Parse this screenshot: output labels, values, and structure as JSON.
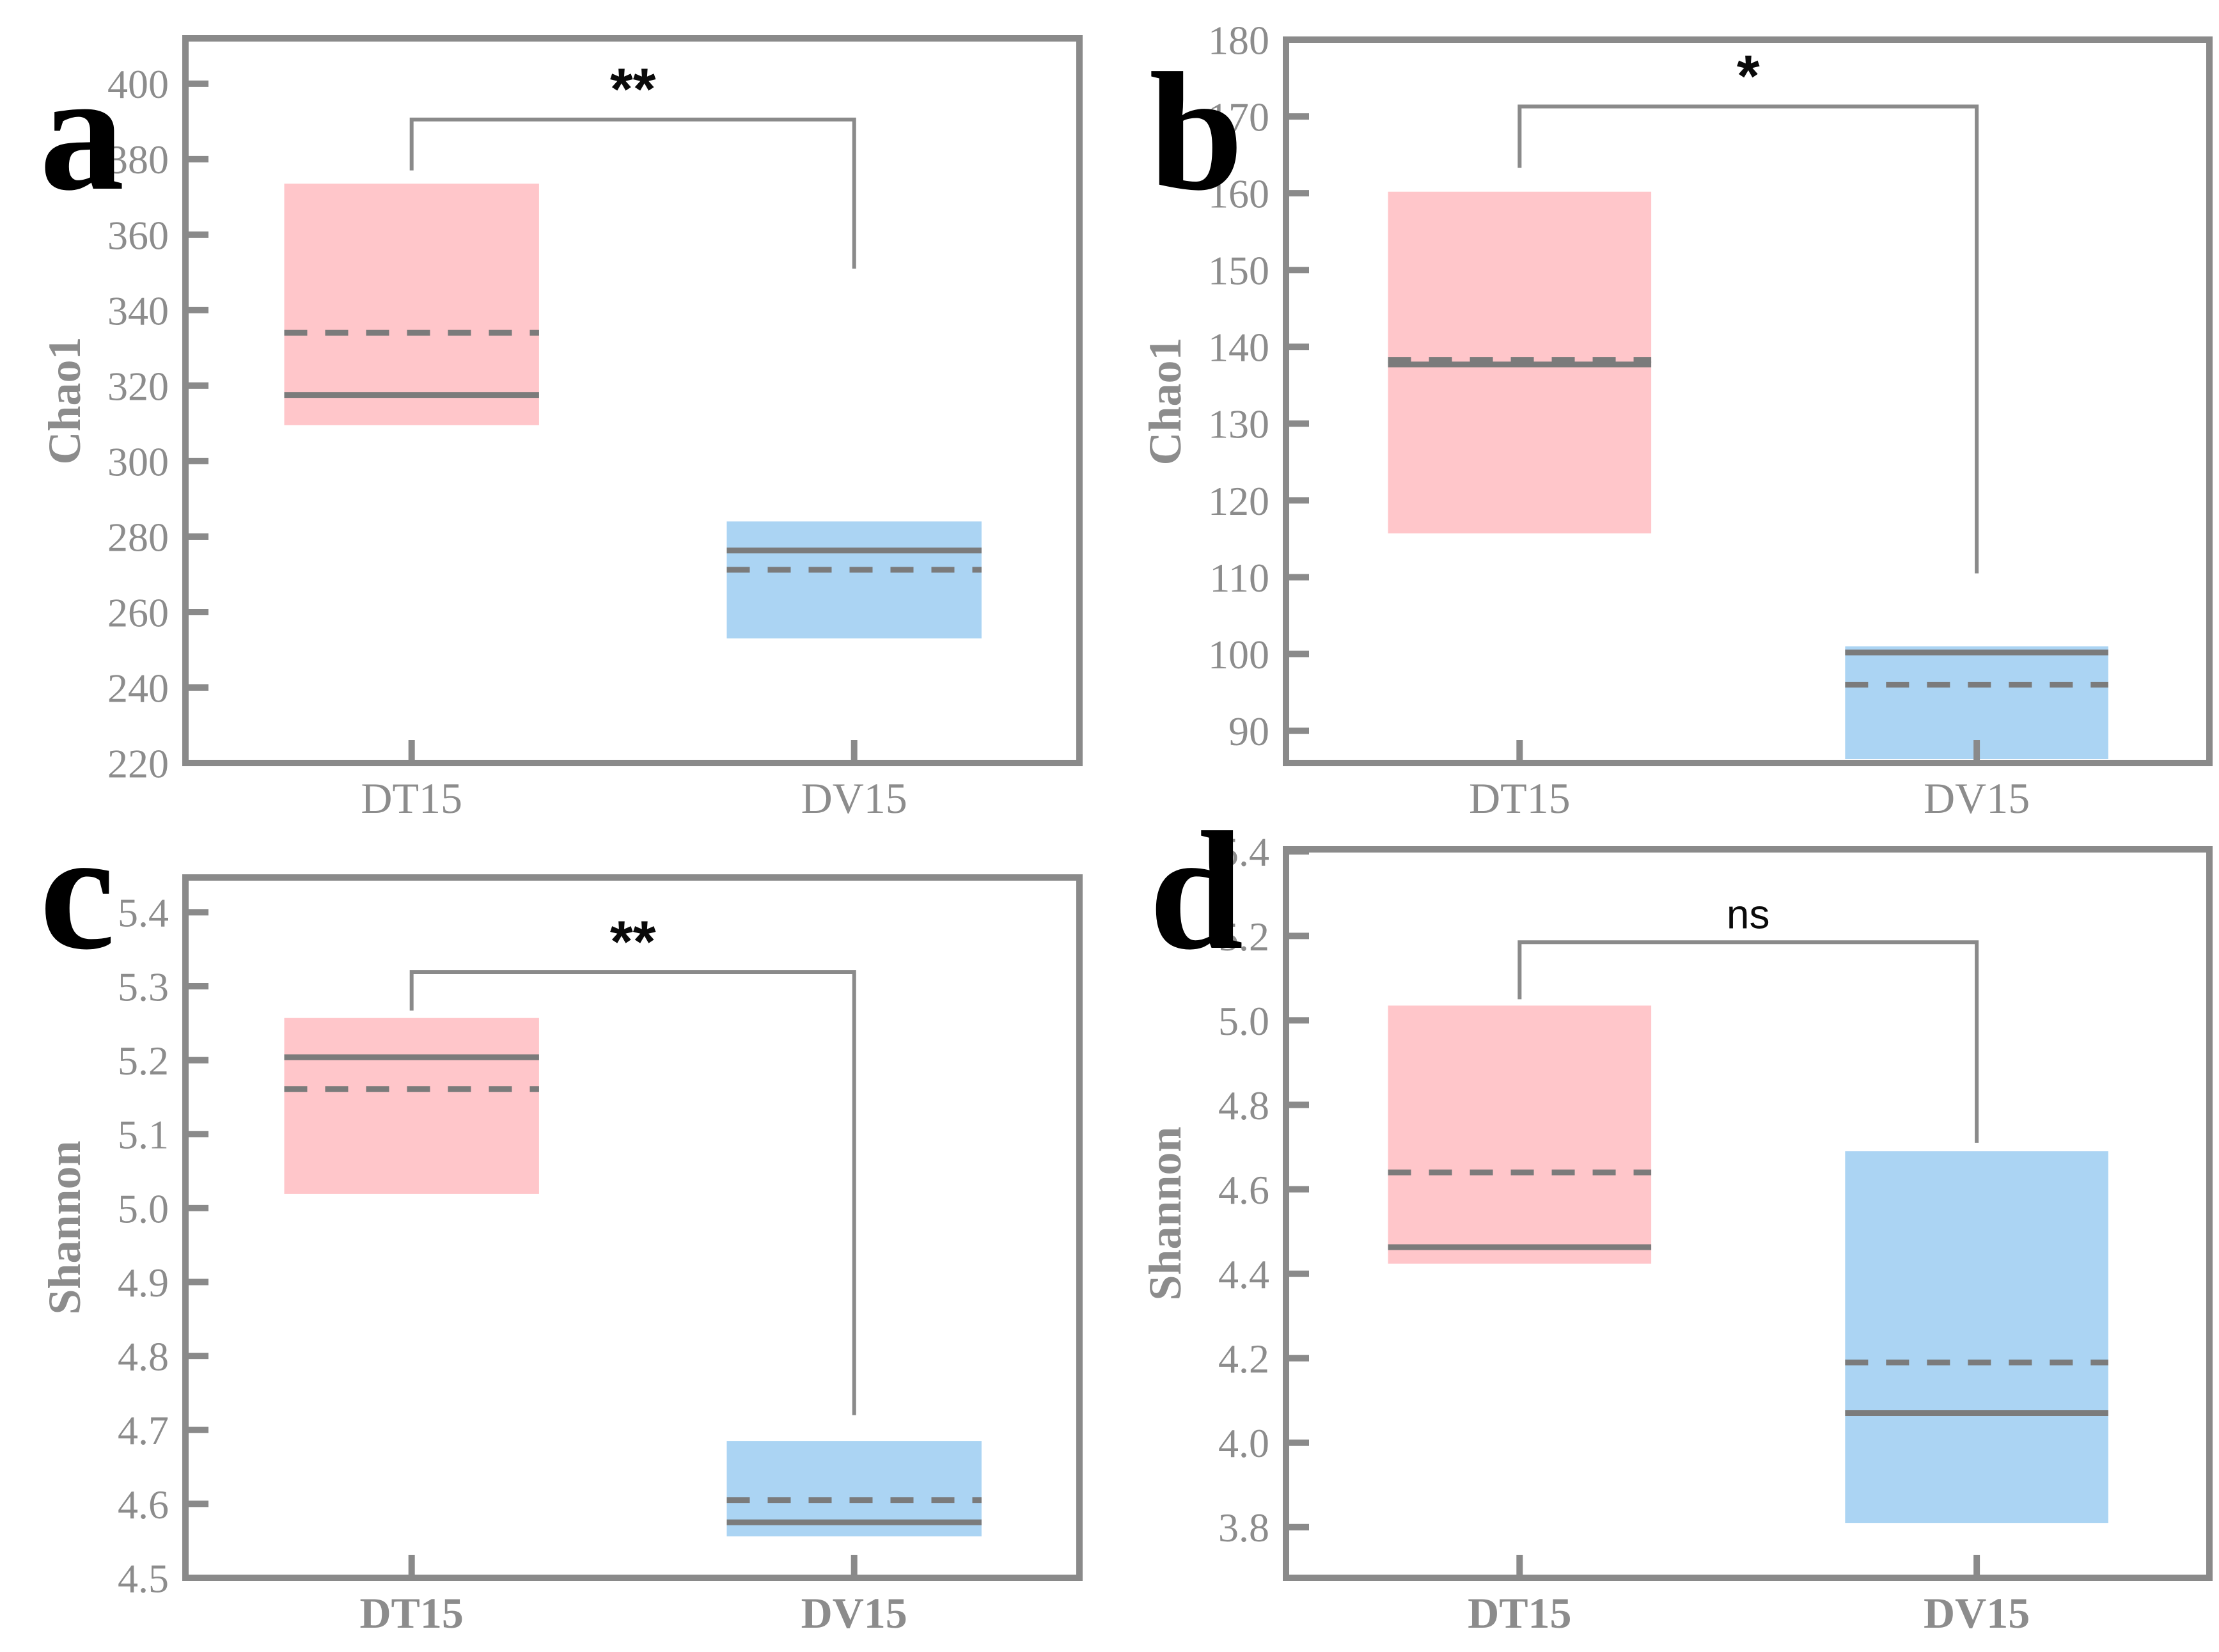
{
  "figure": {
    "description": "Four-panel alpha diversity box plot figure comparing groups DT15 and DV15",
    "panel_letters": [
      "a",
      "b",
      "c",
      "d"
    ]
  },
  "colors": {
    "pink_fill": "#FFC6CA",
    "blue_fill": "#ABD4F3",
    "stat_line_gray": "#7b7b7b",
    "frame_gray": "#8a8a8a",
    "text_gray": "#8c8c8c",
    "label_black": "#0a0a0a"
  },
  "chart_data": {
    "type": "bar",
    "subtype": "summary-box-plot",
    "categories": [
      "DT15",
      "DV15"
    ],
    "legend_position": "none",
    "grid": "off",
    "panels": [
      {
        "id": "a",
        "panel_letter": "a",
        "ylabel": "Chao1",
        "ylim": [
          220,
          412
        ],
        "ytick_values": [
          400,
          380,
          360,
          340,
          320,
          300,
          280,
          260,
          240,
          220
        ],
        "ytick_labels": [
          "400",
          "380",
          "360",
          "340",
          "320",
          "300",
          "280",
          "260",
          "240",
          "220"
        ],
        "xtick_labels": [
          "DT15",
          "DV15"
        ],
        "xtick_bold": false,
        "series": [
          {
            "name": "DT15",
            "color_key": "pink_fill",
            "box_top": 373.5,
            "box_bottom": 309.5,
            "median": 317.5,
            "mean": 334
          },
          {
            "name": "DV15",
            "color_key": "blue_fill",
            "box_top": 284,
            "box_bottom": 253,
            "median": 276.3,
            "mean": 271.2
          }
        ],
        "significance": {
          "label": "**",
          "style": "asterisk",
          "bar_y": 390.5,
          "left_drop_to": 377,
          "right_drop_to": 351
        }
      },
      {
        "id": "b",
        "panel_letter": "b",
        "ylabel": "Chao1",
        "ylim": [
          85.8,
          180
        ],
        "ytick_values": [
          180,
          170,
          160,
          150,
          140,
          130,
          120,
          110,
          100,
          90
        ],
        "ytick_labels": [
          "180",
          "170",
          "160",
          "150",
          "140",
          "130",
          "120",
          "110",
          "100",
          "90"
        ],
        "xtick_labels": [
          "DT15",
          "DV15"
        ],
        "xtick_bold": false,
        "series": [
          {
            "name": "DT15",
            "color_key": "pink_fill",
            "box_top": 160.2,
            "box_bottom": 115.7,
            "median": 137.7,
            "mean": 138.3
          },
          {
            "name": "DV15",
            "color_key": "blue_fill",
            "box_top": 101,
            "box_bottom": 86.3,
            "median": 100.2,
            "mean": 96
          }
        ],
        "significance": {
          "label": "*",
          "style": "asterisk",
          "bar_y": 171.3,
          "left_drop_to": 163.3,
          "right_drop_to": 110.5
        }
      },
      {
        "id": "c",
        "panel_letter": "c",
        "ylabel": "Shannon",
        "ylim": [
          4.5,
          5.447
        ],
        "ytick_values": [
          5.4,
          5.3,
          5.2,
          5.1,
          5.0,
          4.9,
          4.8,
          4.7,
          4.6,
          4.5
        ],
        "ytick_labels": [
          "5.4",
          "5.3",
          "5.2",
          "5.1",
          "5.0",
          "4.9",
          "4.8",
          "4.7",
          "4.6",
          "4.5"
        ],
        "xtick_labels": [
          "DT15",
          "DV15"
        ],
        "xtick_bold": true,
        "series": [
          {
            "name": "DT15",
            "color_key": "pink_fill",
            "box_top": 5.257,
            "box_bottom": 5.019,
            "median": 5.204,
            "mean": 5.161
          },
          {
            "name": "DV15",
            "color_key": "blue_fill",
            "box_top": 4.685,
            "box_bottom": 4.556,
            "median": 4.575,
            "mean": 4.605
          }
        ],
        "significance": {
          "label": "**",
          "style": "asterisk",
          "bar_y": 5.319,
          "left_drop_to": 5.267,
          "right_drop_to": 4.72
        }
      },
      {
        "id": "d",
        "panel_letter": "d",
        "ylabel": "Shannon",
        "ylim": [
          3.68,
          5.405
        ],
        "ytick_values": [
          5.4,
          5.2,
          5.0,
          4.8,
          4.6,
          4.4,
          4.2,
          4.0,
          3.8
        ],
        "ytick_labels": [
          "5.4",
          "5.2",
          "5.0",
          "4.8",
          "4.6",
          "4.4",
          "4.2",
          "4.0",
          "3.8"
        ],
        "xtick_labels": [
          "DT15",
          "DV15"
        ],
        "xtick_bold": true,
        "series": [
          {
            "name": "DT15",
            "color_key": "pink_fill",
            "box_top": 5.035,
            "box_bottom": 4.424,
            "median": 4.463,
            "mean": 4.64
          },
          {
            "name": "DV15",
            "color_key": "blue_fill",
            "box_top": 4.69,
            "box_bottom": 3.81,
            "median": 4.07,
            "mean": 4.19
          }
        ],
        "significance": {
          "label": "ns",
          "style": "ns",
          "bar_y": 5.185,
          "left_drop_to": 5.05,
          "right_drop_to": 4.71
        }
      }
    ]
  }
}
